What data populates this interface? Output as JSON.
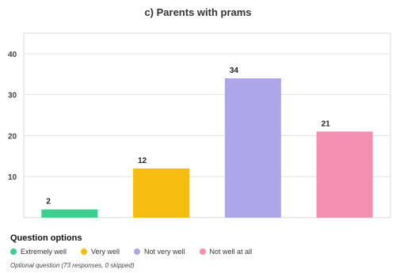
{
  "chart_data": {
    "type": "bar",
    "title": "c) Parents with prams",
    "categories": [
      "Extremely well",
      "Very well",
      "Not very well",
      "Not well at all"
    ],
    "values": [
      2,
      12,
      34,
      21
    ],
    "colors": [
      "#3ecf8e",
      "#f5bd0f",
      "#ada6e8",
      "#f48fb1"
    ],
    "ylim": [
      0,
      45
    ],
    "yticks": [
      10,
      20,
      30,
      40
    ],
    "grid": true,
    "legend_placement": "bottom-left",
    "xlabel": "",
    "ylabel": ""
  },
  "legend": {
    "title": "Question options"
  },
  "footnote": "Optional question (73 responses, 0 skipped)"
}
